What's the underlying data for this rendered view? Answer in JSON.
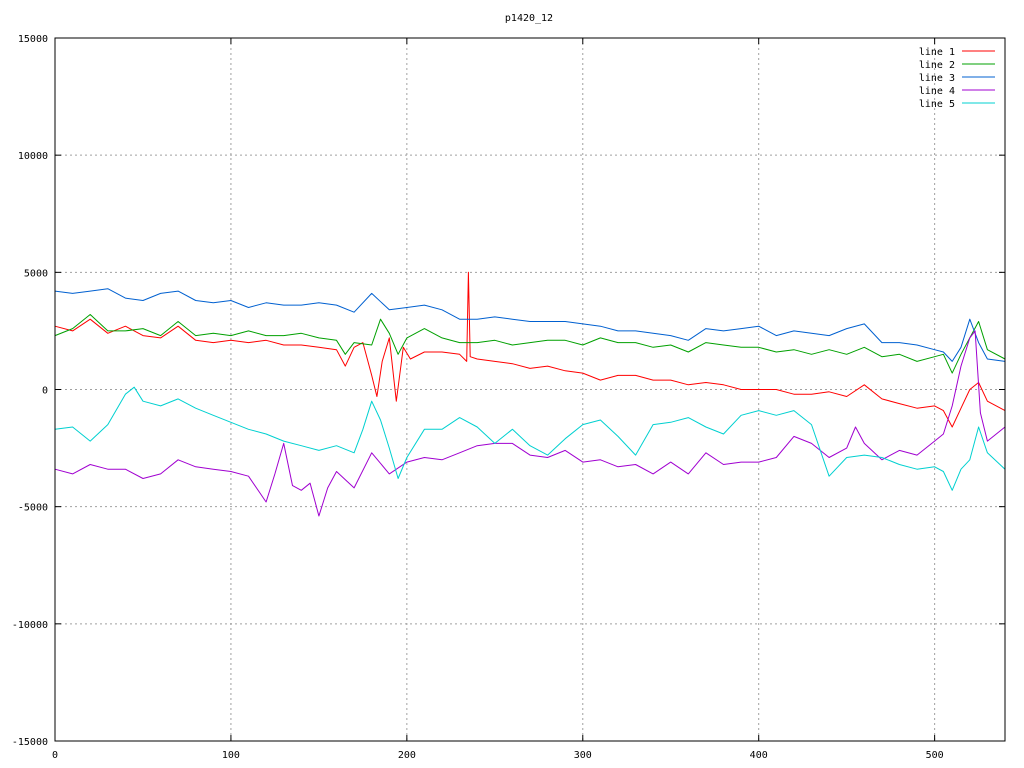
{
  "chart_data": {
    "type": "line",
    "title": "p1420_12",
    "xlabel": "",
    "ylabel": "",
    "xlim": [
      0,
      540
    ],
    "ylim": [
      -15000,
      15000
    ],
    "xticks": [
      0,
      100,
      200,
      300,
      400,
      500
    ],
    "yticks": [
      -15000,
      -10000,
      -5000,
      0,
      5000,
      10000,
      15000
    ],
    "grid": true,
    "legend_position": "top-right",
    "series": [
      {
        "name": "line 1",
        "color": "#ff0000",
        "x": [
          0,
          10,
          20,
          30,
          40,
          50,
          60,
          70,
          80,
          90,
          100,
          110,
          120,
          130,
          140,
          150,
          160,
          165,
          170,
          175,
          180,
          183,
          186,
          190,
          194,
          198,
          202,
          210,
          220,
          230,
          234,
          235,
          236,
          240,
          250,
          260,
          270,
          280,
          290,
          300,
          310,
          320,
          330,
          340,
          350,
          360,
          370,
          380,
          390,
          400,
          410,
          420,
          430,
          440,
          450,
          460,
          470,
          480,
          490,
          500,
          505,
          510,
          515,
          520,
          525,
          530,
          540
        ],
        "y": [
          2700,
          2500,
          3000,
          2400,
          2700,
          2300,
          2200,
          2700,
          2100,
          2000,
          2100,
          2000,
          2100,
          1900,
          1900,
          1800,
          1700,
          1000,
          1800,
          2000,
          600,
          -300,
          1200,
          2200,
          -500,
          1800,
          1300,
          1600,
          1600,
          1500,
          1200,
          5000,
          1400,
          1300,
          1200,
          1100,
          900,
          1000,
          800,
          700,
          400,
          600,
          600,
          400,
          400,
          200,
          300,
          200,
          0,
          0,
          0,
          -200,
          -200,
          -100,
          -300,
          200,
          -400,
          -600,
          -800,
          -700,
          -900,
          -1600,
          -800,
          0,
          300,
          -500,
          -900
        ]
      },
      {
        "name": "line 2",
        "color": "#00a000",
        "x": [
          0,
          10,
          20,
          30,
          40,
          50,
          60,
          70,
          80,
          90,
          100,
          110,
          120,
          130,
          140,
          150,
          160,
          165,
          170,
          180,
          185,
          190,
          195,
          200,
          210,
          220,
          230,
          240,
          250,
          260,
          270,
          280,
          290,
          300,
          310,
          320,
          330,
          340,
          350,
          360,
          370,
          380,
          390,
          400,
          410,
          420,
          430,
          440,
          450,
          460,
          470,
          480,
          490,
          500,
          505,
          510,
          515,
          520,
          525,
          530,
          540
        ],
        "y": [
          2300,
          2600,
          3200,
          2500,
          2500,
          2600,
          2300,
          2900,
          2300,
          2400,
          2300,
          2500,
          2300,
          2300,
          2400,
          2200,
          2100,
          1500,
          2000,
          1900,
          3000,
          2400,
          1500,
          2200,
          2600,
          2200,
          2000,
          2000,
          2100,
          1900,
          2000,
          2100,
          2100,
          1900,
          2200,
          2000,
          2000,
          1800,
          1900,
          1600,
          2000,
          1900,
          1800,
          1800,
          1600,
          1700,
          1500,
          1700,
          1500,
          1800,
          1400,
          1500,
          1200,
          1400,
          1500,
          700,
          1500,
          2200,
          2900,
          1700,
          1300
        ]
      },
      {
        "name": "line 3",
        "color": "#0060d0",
        "x": [
          0,
          10,
          20,
          30,
          40,
          50,
          60,
          70,
          80,
          90,
          100,
          110,
          120,
          130,
          140,
          150,
          160,
          170,
          180,
          190,
          200,
          210,
          220,
          230,
          240,
          250,
          260,
          270,
          280,
          290,
          300,
          310,
          320,
          330,
          340,
          350,
          360,
          370,
          380,
          390,
          400,
          410,
          420,
          430,
          440,
          450,
          460,
          470,
          480,
          490,
          500,
          505,
          510,
          515,
          520,
          525,
          530,
          540
        ],
        "y": [
          4200,
          4100,
          4200,
          4300,
          3900,
          3800,
          4100,
          4200,
          3800,
          3700,
          3800,
          3500,
          3700,
          3600,
          3600,
          3700,
          3600,
          3300,
          4100,
          3400,
          3500,
          3600,
          3400,
          3000,
          3000,
          3100,
          3000,
          2900,
          2900,
          2900,
          2800,
          2700,
          2500,
          2500,
          2400,
          2300,
          2100,
          2600,
          2500,
          2600,
          2700,
          2300,
          2500,
          2400,
          2300,
          2600,
          2800,
          2000,
          2000,
          1900,
          1700,
          1600,
          1200,
          1800,
          3000,
          2000,
          1300,
          1200
        ]
      },
      {
        "name": "line 4",
        "color": "#a000d0",
        "x": [
          0,
          10,
          20,
          30,
          40,
          50,
          60,
          70,
          80,
          90,
          100,
          110,
          120,
          125,
          130,
          135,
          140,
          145,
          150,
          155,
          160,
          170,
          180,
          190,
          200,
          210,
          220,
          230,
          240,
          250,
          260,
          270,
          280,
          290,
          300,
          310,
          320,
          330,
          340,
          350,
          360,
          370,
          380,
          390,
          400,
          410,
          420,
          430,
          440,
          450,
          455,
          460,
          470,
          480,
          490,
          500,
          505,
          510,
          515,
          520,
          523,
          526,
          530,
          540
        ],
        "y": [
          -3400,
          -3600,
          -3200,
          -3400,
          -3400,
          -3800,
          -3600,
          -3000,
          -3300,
          -3400,
          -3500,
          -3700,
          -4800,
          -3600,
          -2300,
          -4100,
          -4300,
          -4000,
          -5400,
          -4200,
          -3500,
          -4200,
          -2700,
          -3600,
          -3100,
          -2900,
          -3000,
          -2700,
          -2400,
          -2300,
          -2300,
          -2800,
          -2900,
          -2600,
          -3100,
          -3000,
          -3300,
          -3200,
          -3600,
          -3100,
          -3600,
          -2700,
          -3200,
          -3100,
          -3100,
          -2900,
          -2000,
          -2300,
          -2900,
          -2500,
          -1600,
          -2300,
          -3000,
          -2600,
          -2800,
          -2200,
          -1900,
          -700,
          1000,
          2200,
          2500,
          -1000,
          -2200,
          -1600
        ]
      },
      {
        "name": "line 5",
        "color": "#00d0d0",
        "x": [
          0,
          10,
          20,
          30,
          40,
          45,
          50,
          60,
          70,
          80,
          90,
          100,
          110,
          120,
          130,
          140,
          150,
          160,
          170,
          175,
          180,
          185,
          190,
          195,
          200,
          210,
          220,
          230,
          240,
          250,
          260,
          270,
          280,
          290,
          300,
          310,
          320,
          330,
          340,
          350,
          360,
          370,
          380,
          390,
          400,
          410,
          420,
          430,
          440,
          450,
          460,
          470,
          480,
          490,
          500,
          505,
          510,
          515,
          520,
          525,
          530,
          540
        ],
        "y": [
          -1700,
          -1600,
          -2200,
          -1500,
          -200,
          100,
          -500,
          -700,
          -400,
          -800,
          -1100,
          -1400,
          -1700,
          -1900,
          -2200,
          -2400,
          -2600,
          -2400,
          -2700,
          -1700,
          -500,
          -1300,
          -2500,
          -3800,
          -2900,
          -1700,
          -1700,
          -1200,
          -1600,
          -2300,
          -1700,
          -2400,
          -2800,
          -2100,
          -1500,
          -1300,
          -2000,
          -2800,
          -1500,
          -1400,
          -1200,
          -1600,
          -1900,
          -1100,
          -900,
          -1100,
          -900,
          -1500,
          -3700,
          -2900,
          -2800,
          -2900,
          -3200,
          -3400,
          -3300,
          -3500,
          -4300,
          -3400,
          -3000,
          -1600,
          -2700,
          -3400
        ]
      }
    ]
  }
}
